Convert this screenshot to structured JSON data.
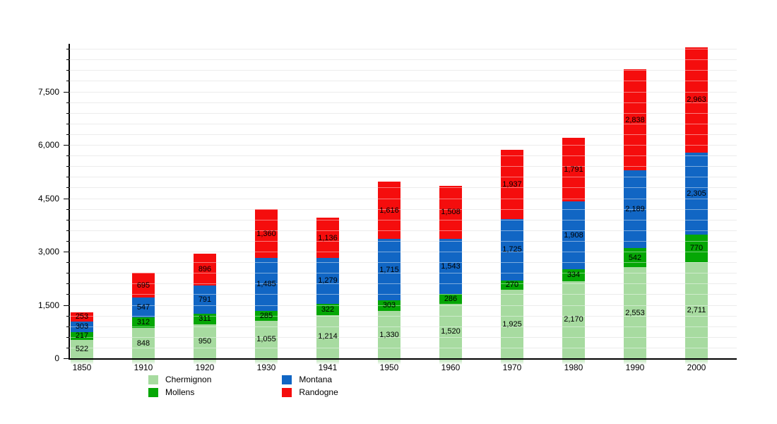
{
  "chart_data": {
    "type": "bar",
    "stacked": true,
    "title": "",
    "xlabel": "",
    "ylabel": "",
    "categories": [
      "1850",
      "1910",
      "1920",
      "1930",
      "1941",
      "1950",
      "1960",
      "1970",
      "1980",
      "1990",
      "2000"
    ],
    "series": [
      {
        "name": "Chermignon",
        "color": "#A7DBA0",
        "values": [
          522,
          848,
          950,
          1055,
          1214,
          1330,
          1520,
          1925,
          2170,
          2553,
          2711
        ]
      },
      {
        "name": "Mollens",
        "color": "#05A705",
        "values": [
          217,
          312,
          311,
          285,
          322,
          303,
          286,
          270,
          334,
          542,
          770
        ]
      },
      {
        "name": "Montana",
        "color": "#1166C4",
        "values": [
          303,
          547,
          791,
          1485,
          1279,
          1715,
          1543,
          1725,
          1908,
          2189,
          2305
        ]
      },
      {
        "name": "Randogne",
        "color": "#F50D0D",
        "values": [
          253,
          695,
          896,
          1360,
          1136,
          1616,
          1508,
          1937,
          1791,
          2838,
          2963
        ]
      }
    ],
    "yticks": [
      0,
      1500,
      3000,
      4500,
      6000,
      7500
    ],
    "minor_grid_step": 300,
    "ylim": [
      0,
      8850
    ],
    "grid": true,
    "gridline_color": "#DCDCDC",
    "legend_position": "bottom",
    "value_labels": true,
    "axis_color": "#000000",
    "background_color": "#FFFFFF"
  }
}
